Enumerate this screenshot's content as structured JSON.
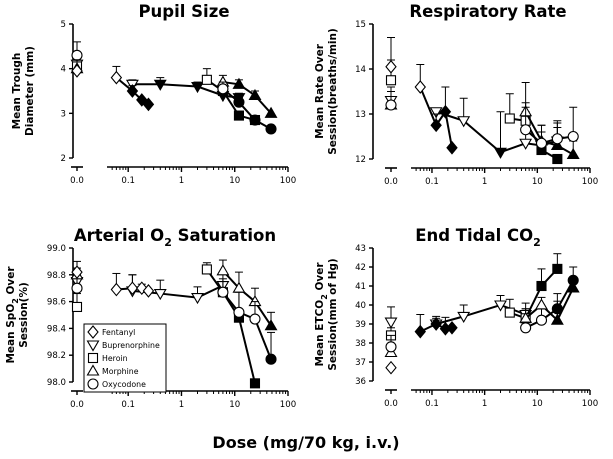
{
  "x_label": "Dose (mg/70 kg, i.v.)",
  "legend_entries": [
    {
      "drug": "Fentanyl",
      "marker": "diamond"
    },
    {
      "drug": "Buprenorphine",
      "marker": "triangle-down"
    },
    {
      "drug": "Heroin",
      "marker": "square"
    },
    {
      "drug": "Morphine",
      "marker": "triangle-up"
    },
    {
      "drug": "Oxycodone",
      "marker": "circle"
    }
  ],
  "chart_data": [
    {
      "type": "line",
      "title": "Pupil Size",
      "ylabel_lines": [
        "Mean Trough",
        "Diameter (mm)"
      ],
      "xscale": "log",
      "xlim": [
        0.04,
        100
      ],
      "xticks": [
        0.1,
        1,
        10,
        100
      ],
      "xtick_labels": [
        "0.1",
        "1",
        "10",
        "100"
      ],
      "baseline_label": "0.0",
      "ylim": [
        2,
        5
      ],
      "yticks": [
        2,
        3,
        4,
        5
      ],
      "series": [
        {
          "name": "Fentanyl",
          "marker": "diamond",
          "baseline": 3.95,
          "baseline_err": 0.25,
          "x": [
            0.06,
            0.12,
            0.18,
            0.24
          ],
          "y": [
            3.8,
            3.5,
            3.3,
            3.2
          ],
          "filled": [
            false,
            true,
            true,
            true
          ],
          "err": [
            0.25,
            0.12,
            0,
            0
          ]
        },
        {
          "name": "Buprenorphine",
          "marker": "triangle-down",
          "baseline": 4.1,
          "baseline_err": 0,
          "x": [
            0.12,
            0.4,
            2,
            6,
            12
          ],
          "y": [
            3.65,
            3.65,
            3.6,
            3.4,
            3.35
          ],
          "filled": [
            false,
            true,
            true,
            true,
            true
          ],
          "err": [
            0.1,
            0.15,
            0.1,
            0.2,
            0.1
          ]
        },
        {
          "name": "Heroin",
          "marker": "square",
          "baseline": 4.05,
          "baseline_err": 0.3,
          "x": [
            3,
            6,
            12,
            24
          ],
          "y": [
            3.75,
            3.5,
            2.95,
            2.85
          ],
          "filled": [
            false,
            true,
            true,
            true
          ],
          "err": [
            0.25,
            0.2,
            0,
            0
          ]
        },
        {
          "name": "Morphine",
          "marker": "triangle-up",
          "baseline": 4.0,
          "baseline_err": 0,
          "x": [
            6,
            12,
            24,
            48
          ],
          "y": [
            3.7,
            3.65,
            3.4,
            3.0
          ],
          "filled": [
            false,
            true,
            true,
            true
          ],
          "err": [
            0.15,
            0.1,
            0.1,
            0
          ]
        },
        {
          "name": "Oxycodone",
          "marker": "circle",
          "baseline": 4.3,
          "baseline_err": 0.3,
          "x": [
            6,
            12,
            24,
            48
          ],
          "y": [
            3.55,
            3.25,
            2.85,
            2.65
          ],
          "filled": [
            false,
            true,
            true,
            true
          ],
          "err": [
            0.15,
            0.1,
            0,
            0
          ]
        }
      ]
    },
    {
      "type": "line",
      "title": "Respiratory Rate",
      "ylabel_lines": [
        "Mean Rate Over",
        "Session(breaths/min)"
      ],
      "xscale": "log",
      "xlim": [
        0.04,
        100
      ],
      "xticks": [
        0.1,
        1,
        10,
        100
      ],
      "xtick_labels": [
        "0.1",
        "1",
        "10",
        "100"
      ],
      "baseline_label": "0.0",
      "ylim": [
        12,
        15
      ],
      "yticks": [
        12,
        13,
        14,
        15
      ],
      "series": [
        {
          "name": "Fentanyl",
          "marker": "diamond",
          "baseline": 14.05,
          "baseline_err": 0.65,
          "x": [
            0.06,
            0.12,
            0.18,
            0.24
          ],
          "y": [
            13.6,
            12.75,
            13.05,
            12.25
          ],
          "filled": [
            false,
            true,
            true,
            true
          ],
          "err": [
            0.5,
            0.25,
            0.55,
            0
          ]
        },
        {
          "name": "Buprenorphine",
          "marker": "triangle-down",
          "baseline": 13.3,
          "baseline_err": 0.3,
          "x": [
            0.12,
            0.4,
            2,
            6,
            12,
            24
          ],
          "y": [
            13.05,
            12.85,
            12.15,
            12.35,
            12.3,
            12.4
          ],
          "filled": [
            false,
            false,
            true,
            false,
            true,
            true
          ],
          "err": [
            0,
            0.5,
            0.9,
            0.7,
            0.3,
            0.4
          ]
        },
        {
          "name": "Heroin",
          "marker": "square",
          "baseline": 13.75,
          "baseline_err": 0.45,
          "x": [
            3,
            6,
            12,
            24
          ],
          "y": [
            12.9,
            12.85,
            12.2,
            12.0
          ],
          "filled": [
            false,
            false,
            true,
            true
          ],
          "err": [
            0.55,
            0.4,
            0,
            0
          ]
        },
        {
          "name": "Morphine",
          "marker": "triangle-up",
          "baseline": 13.2,
          "baseline_err": 0.3,
          "x": [
            6,
            12,
            24,
            48
          ],
          "y": [
            13.05,
            12.4,
            12.3,
            12.1
          ],
          "filled": [
            false,
            false,
            true,
            true
          ],
          "err": [
            0.65,
            0.35,
            0.4,
            0.3
          ]
        },
        {
          "name": "Oxycodone",
          "marker": "circle",
          "baseline": 13.2,
          "baseline_err": 0.3,
          "x": [
            6,
            12,
            24,
            48
          ],
          "y": [
            12.65,
            12.35,
            12.45,
            12.5
          ],
          "filled": [
            false,
            false,
            false,
            false
          ],
          "err": [
            0.5,
            0.4,
            0.4,
            0.65
          ]
        }
      ]
    },
    {
      "type": "line",
      "title": "Arterial O",
      "title_sub": "2",
      "title_rest": " Saturation",
      "ylabel_lines": [
        "Mean SpO",
        "Session(%)"
      ],
      "ylabel_sub": "2",
      "ylabel_rest": " Over",
      "xscale": "log",
      "xlim": [
        0.04,
        100
      ],
      "xticks": [
        0.1,
        1,
        10,
        100
      ],
      "xtick_labels": [
        "0.1",
        "1",
        "10",
        "100"
      ],
      "baseline_label": "0.0",
      "ylim": [
        98.0,
        99.0
      ],
      "yticks": [
        98.0,
        98.2,
        98.4,
        98.6,
        98.8,
        99.0
      ],
      "ytick_labels": [
        "98.0",
        "98.2",
        "98.4",
        "98.6",
        "98.8",
        "99.0"
      ],
      "series": [
        {
          "name": "Fentanyl",
          "marker": "diamond",
          "baseline": 98.82,
          "baseline_err": 0.08,
          "x": [
            0.06,
            0.12,
            0.18,
            0.24
          ],
          "y": [
            98.69,
            98.7,
            98.7,
            98.68
          ],
          "filled": [
            false,
            false,
            false,
            false
          ],
          "err": [
            0.12,
            0.1,
            0.03,
            0
          ]
        },
        {
          "name": "Buprenorphine",
          "marker": "triangle-down",
          "baseline": 98.75,
          "baseline_err": 0.1,
          "x": [
            0.12,
            0.4,
            2,
            6
          ],
          "y": [
            98.68,
            98.66,
            98.63,
            98.72
          ],
          "filled": [
            false,
            false,
            false,
            false
          ],
          "err": [
            0.12,
            0.1,
            0.08,
            0.1
          ]
        },
        {
          "name": "Heroin",
          "marker": "square",
          "baseline": 98.56,
          "baseline_err": 0.1,
          "x": [
            3,
            6,
            12,
            24
          ],
          "y": [
            98.84,
            98.67,
            98.48,
            97.99
          ],
          "filled": [
            false,
            false,
            true,
            true
          ],
          "err": [
            0.05,
            0.1,
            0.2,
            0
          ]
        },
        {
          "name": "Morphine",
          "marker": "triangle-up",
          "baseline": 98.8,
          "baseline_err": 0.05,
          "x": [
            6,
            12,
            24,
            48
          ],
          "y": [
            98.83,
            98.7,
            98.6,
            98.42
          ],
          "filled": [
            false,
            false,
            false,
            true
          ],
          "err": [
            0.08,
            0.12,
            0.1,
            0.1
          ]
        },
        {
          "name": "Oxycodone",
          "marker": "circle",
          "baseline": 98.7,
          "baseline_err": 0.1,
          "x": [
            6,
            12,
            24,
            48
          ],
          "y": [
            98.67,
            98.52,
            98.47,
            98.17
          ],
          "filled": [
            false,
            false,
            false,
            true
          ],
          "err": [
            0.08,
            0.15,
            0.13,
            0.2
          ]
        }
      ]
    },
    {
      "type": "line",
      "title": "End Tidal CO",
      "title_sub": "2",
      "title_rest": "",
      "ylabel_lines": [
        "Mean ETCO",
        "Session(mm of Hg)"
      ],
      "ylabel_sub": "2",
      "ylabel_rest": " Over",
      "xscale": "log",
      "xlim": [
        0.04,
        100
      ],
      "xticks": [
        0.1,
        1,
        10,
        100
      ],
      "xtick_labels": [
        "0.1",
        "1",
        "10",
        "100"
      ],
      "baseline_label": "0.0",
      "ylim": [
        36,
        43
      ],
      "yticks": [
        36,
        37,
        38,
        39,
        40,
        41,
        42,
        43
      ],
      "series": [
        {
          "name": "Fentanyl",
          "marker": "diamond",
          "baseline": 36.7,
          "baseline_err": 0,
          "x": [
            0.06,
            0.12,
            0.18,
            0.24
          ],
          "y": [
            38.6,
            39.0,
            38.75,
            38.8
          ],
          "filled": [
            true,
            true,
            true,
            true
          ],
          "err": [
            0.9,
            0.4,
            0.6,
            0
          ]
        },
        {
          "name": "Buprenorphine",
          "marker": "triangle-down",
          "baseline": 39.1,
          "baseline_err": 0.8,
          "x": [
            0.12,
            0.4,
            2,
            6
          ],
          "y": [
            39.0,
            39.4,
            40.0,
            39.5
          ],
          "filled": [
            false,
            false,
            false,
            false
          ],
          "err": [
            0.3,
            0.6,
            0.5,
            0.6
          ]
        },
        {
          "name": "Heroin",
          "marker": "square",
          "baseline": 38.4,
          "baseline_err": 0.4,
          "x": [
            3,
            6,
            12,
            24
          ],
          "y": [
            39.6,
            39.3,
            41.0,
            41.9
          ],
          "filled": [
            false,
            false,
            true,
            true
          ],
          "err": [
            0.7,
            0.5,
            0.9,
            0.8
          ]
        },
        {
          "name": "Morphine",
          "marker": "triangle-up",
          "baseline": 37.5,
          "baseline_err": 0.4,
          "x": [
            6,
            12,
            24,
            48
          ],
          "y": [
            39.3,
            40.0,
            39.2,
            40.9
          ],
          "filled": [
            false,
            false,
            true,
            true
          ],
          "err": [
            0.5,
            0.4,
            1.0,
            0
          ]
        },
        {
          "name": "Oxycodone",
          "marker": "circle",
          "baseline": 37.8,
          "baseline_err": 0.6,
          "x": [
            6,
            12,
            24,
            48
          ],
          "y": [
            38.8,
            39.2,
            39.8,
            41.3
          ],
          "filled": [
            false,
            false,
            true,
            true
          ],
          "err": [
            0.3,
            0.6,
            0.8,
            0.7
          ]
        }
      ]
    }
  ]
}
